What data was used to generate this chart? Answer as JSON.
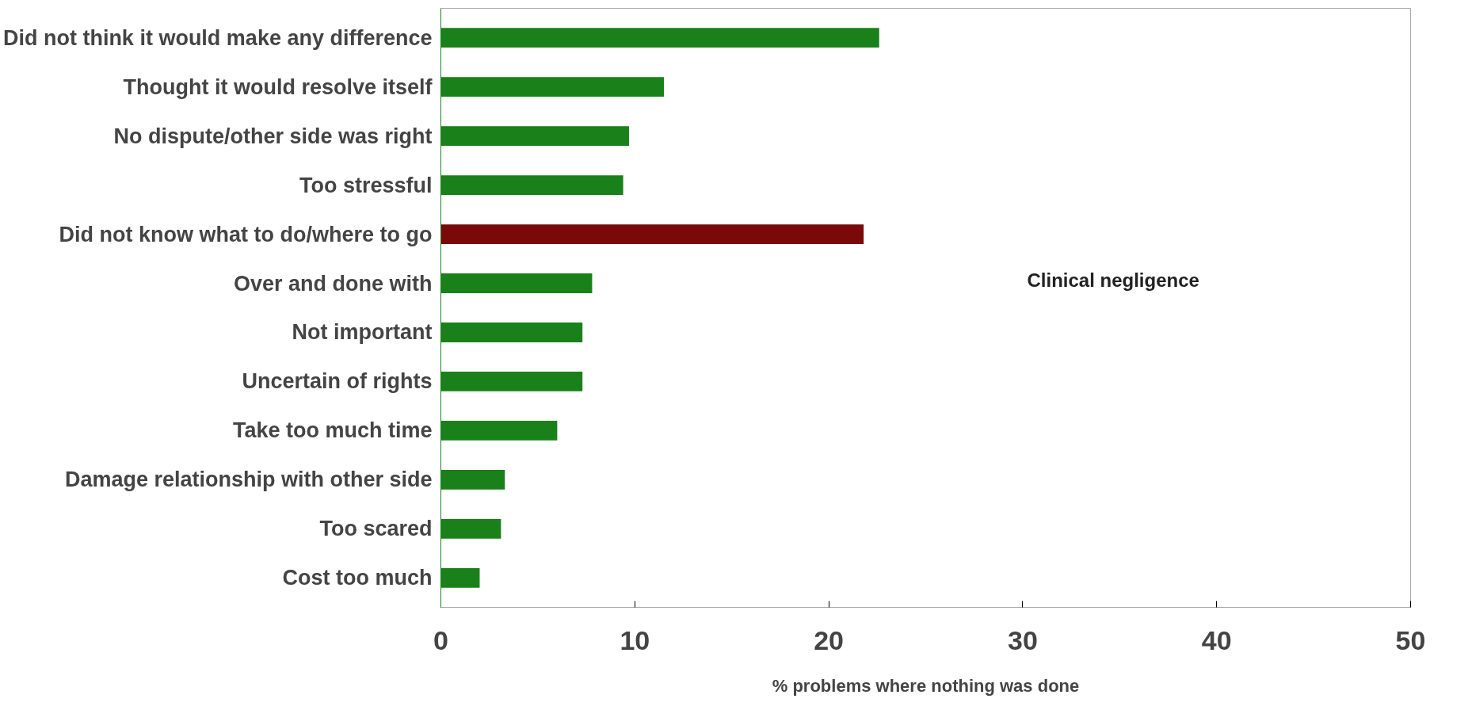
{
  "chart_data": {
    "type": "bar",
    "orientation": "horizontal",
    "xlabel": "% problems where nothing was done",
    "categories": [
      "Did not think it would make any difference",
      "Thought it would resolve itself",
      "No dispute/other side was right",
      "Too stressful",
      "Did not know what to do/where to go",
      "Over and done with",
      "Not important",
      "Uncertain of rights",
      "Take too much time",
      "Damage relationship with other side",
      "Too scared",
      "Cost too much"
    ],
    "values": [
      22.6,
      11.5,
      9.7,
      9.4,
      21.8,
      7.8,
      7.3,
      7.3,
      6.0,
      3.3,
      3.1,
      2.0
    ],
    "colors": [
      "#1a801a",
      "#1a801a",
      "#1a801a",
      "#1a801a",
      "#7a0a0a",
      "#1a801a",
      "#1a801a",
      "#1a801a",
      "#1a801a",
      "#1a801a",
      "#1a801a",
      "#1a801a"
    ],
    "xlim": [
      0,
      50
    ],
    "xticks": [
      0,
      10,
      20,
      30,
      40,
      50
    ],
    "grid": false,
    "annotations": [
      "Clinical negligence"
    ]
  }
}
